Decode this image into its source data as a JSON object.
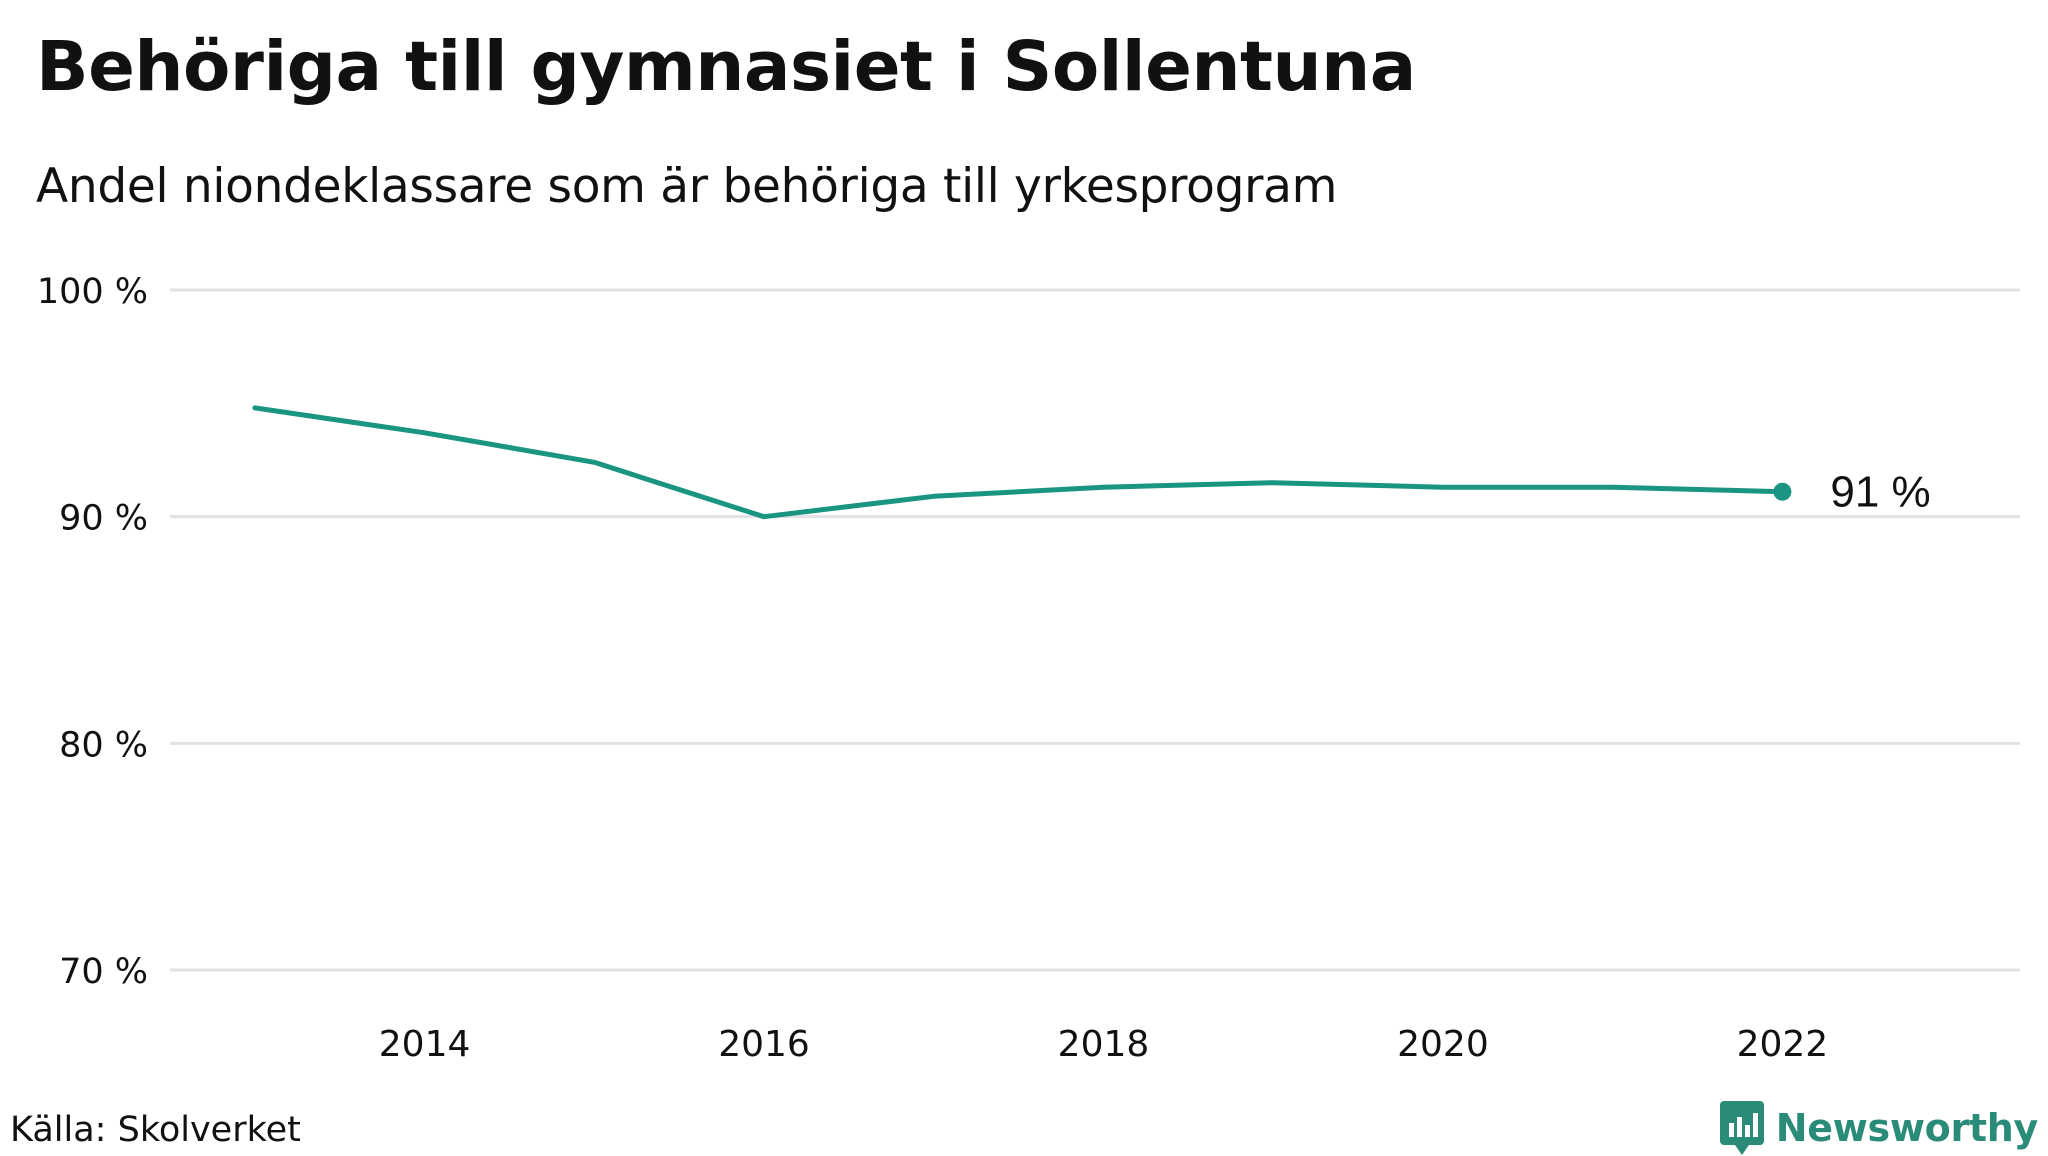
{
  "title": "Behöriga till gymnasiet i Sollentuna",
  "subtitle": "Andel niondeklassare som är behöriga till yrkesprogram",
  "source": "Källa: Skolverket",
  "brand": {
    "name": "Newsworthy",
    "icon": "newsworthy-logo-icon",
    "color": "#2a8c78"
  },
  "colors": {
    "line": "#1a9582",
    "grid": "#e1e1e6",
    "text": "#111111"
  },
  "chart_data": {
    "type": "line",
    "title": "Behöriga till gymnasiet i Sollentuna",
    "subtitle": "Andel niondeklassare som är behöriga till yrkesprogram",
    "xlabel": "",
    "ylabel": "",
    "x": [
      2013,
      2014,
      2015,
      2016,
      2017,
      2018,
      2019,
      2020,
      2021,
      2022
    ],
    "values": [
      94.8,
      93.7,
      92.4,
      90.0,
      90.9,
      91.3,
      91.5,
      91.3,
      91.3,
      91.1
    ],
    "xlim": [
      2012.5,
      2023.4
    ],
    "ylim": [
      70,
      100
    ],
    "x_ticks": [
      2014,
      2016,
      2018,
      2020,
      2022
    ],
    "y_ticks": [
      70,
      80,
      90,
      100
    ],
    "y_tick_labels": [
      "70 %",
      "80 %",
      "90 %",
      "100 %"
    ],
    "end_label": "91  %",
    "grid": "horizontal",
    "legend": "none"
  }
}
